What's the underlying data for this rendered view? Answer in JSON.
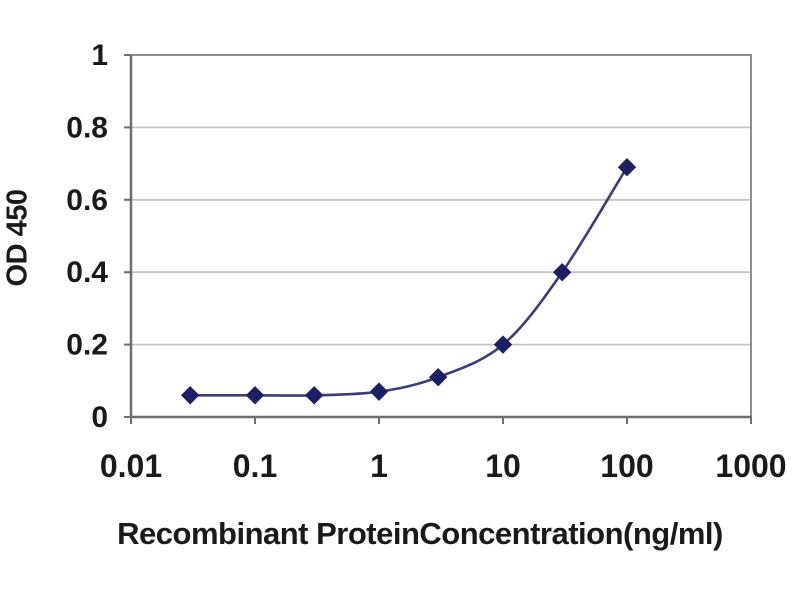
{
  "chart_data": {
    "type": "line",
    "title": "",
    "xlabel": "Recombinant ProteinConcentration(ng/ml)",
    "ylabel": "OD 450",
    "x_scale": "log",
    "xlim": [
      0.01,
      1000
    ],
    "ylim": [
      0,
      1
    ],
    "x_tick_labels": [
      "0.01",
      "0.1",
      "1",
      "10",
      "100",
      "1000"
    ],
    "x_tick_values": [
      0.01,
      0.1,
      1,
      10,
      100,
      1000
    ],
    "y_tick_labels": [
      "0",
      "0.2",
      "0.4",
      "0.6",
      "0.8",
      "1"
    ],
    "y_tick_values": [
      0,
      0.2,
      0.4,
      0.6,
      0.8,
      1
    ],
    "grid": "horizontal",
    "legend": "none",
    "x": [
      0.03,
      0.1,
      0.3,
      1,
      3,
      10,
      30,
      100
    ],
    "series": [
      {
        "name": "OD 450",
        "values": [
          0.06,
          0.06,
          0.06,
          0.07,
          0.11,
          0.2,
          0.4,
          0.69
        ]
      }
    ],
    "colors": {
      "line": "#3c3c78",
      "marker": "#1e1e64",
      "gridline": "#c4c4c4",
      "axis": "#6e6e6e",
      "frame": "#8f8f8f",
      "tick_text": "#1a1a1a",
      "background": "#ffffff"
    },
    "marker_shape": "diamond"
  }
}
